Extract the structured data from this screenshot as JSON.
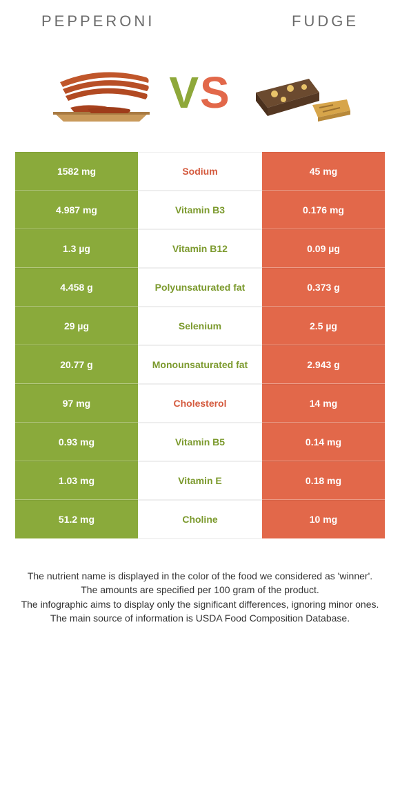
{
  "colors": {
    "green": "#8aaa3b",
    "orange": "#e2684a",
    "mid_green_text": "#7c9a2e",
    "mid_orange_text": "#d45a3e"
  },
  "header": {
    "left_title": "PEPPERONI",
    "right_title": "FUDGE",
    "vs_v": "V",
    "vs_s": "S"
  },
  "table": {
    "rows": [
      {
        "left": "1582 mg",
        "label": "Sodium",
        "right": "45 mg",
        "winner": "orange"
      },
      {
        "left": "4.987 mg",
        "label": "Vitamin B3",
        "right": "0.176 mg",
        "winner": "green"
      },
      {
        "left": "1.3 µg",
        "label": "Vitamin B12",
        "right": "0.09 µg",
        "winner": "green"
      },
      {
        "left": "4.458 g",
        "label": "Polyunsaturated fat",
        "right": "0.373 g",
        "winner": "green"
      },
      {
        "left": "29 µg",
        "label": "Selenium",
        "right": "2.5 µg",
        "winner": "green"
      },
      {
        "left": "20.77 g",
        "label": "Monounsaturated fat",
        "right": "2.943 g",
        "winner": "green"
      },
      {
        "left": "97 mg",
        "label": "Cholesterol",
        "right": "14 mg",
        "winner": "orange"
      },
      {
        "left": "0.93 mg",
        "label": "Vitamin B5",
        "right": "0.14 mg",
        "winner": "green"
      },
      {
        "left": "1.03 mg",
        "label": "Vitamin E",
        "right": "0.18 mg",
        "winner": "green"
      },
      {
        "left": "51.2 mg",
        "label": "Choline",
        "right": "10 mg",
        "winner": "green"
      }
    ]
  },
  "footer": {
    "line1": "The nutrient name is displayed in the color of the food we considered as 'winner'.",
    "line2": "The amounts are specified per 100 gram of the product.",
    "line3": "The infographic aims to display only the significant differences, ignoring minor ones.",
    "line4": "The main source of information is USDA Food Composition Database."
  }
}
